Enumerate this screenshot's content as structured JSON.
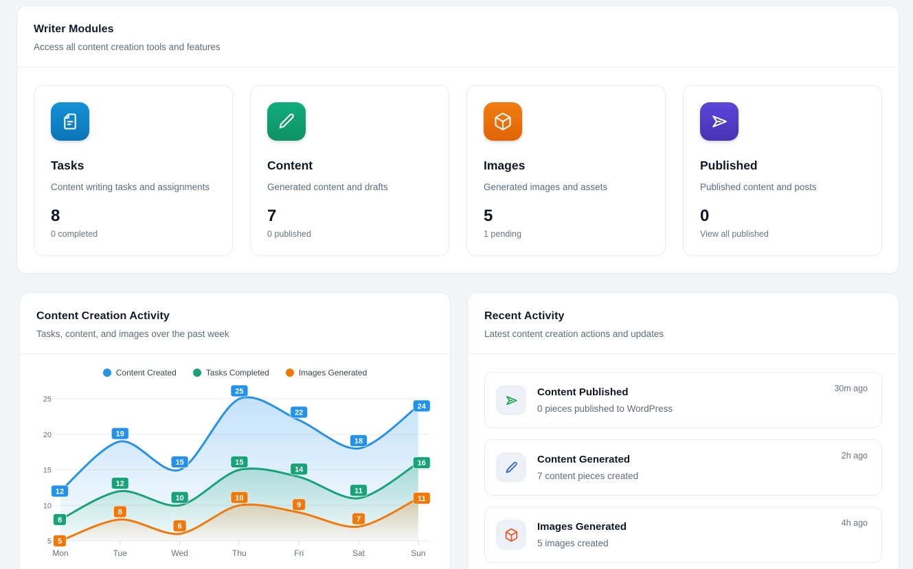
{
  "writer_modules": {
    "title": "Writer Modules",
    "subtitle": "Access all content creation tools and features",
    "cards": [
      {
        "title": "Tasks",
        "description": "Content writing tasks and assignments",
        "count": "8",
        "stat": "0 completed",
        "icon": "document-icon",
        "color_top": "#1492d4",
        "color_bottom": "#0b74b8"
      },
      {
        "title": "Content",
        "description": "Generated content and drafts",
        "count": "7",
        "stat": "0 published",
        "icon": "pencil-icon",
        "color_top": "#13ac7a",
        "color_bottom": "#0c9265"
      },
      {
        "title": "Images",
        "description": "Generated images and assets",
        "count": "5",
        "stat": "1 pending",
        "icon": "cube-icon",
        "color_top": "#f07d12",
        "color_bottom": "#e26304"
      },
      {
        "title": "Published",
        "description": "Published content and posts",
        "count": "0",
        "stat": "View all published",
        "icon": "send-icon",
        "color_top": "#5c45da",
        "color_bottom": "#4832b4"
      }
    ]
  },
  "activity_chart": {
    "title": "Content Creation Activity",
    "subtitle": "Tasks, content, and images over the past week"
  },
  "chart_data": {
    "type": "line",
    "x": [
      "Mon",
      "Tue",
      "Wed",
      "Thu",
      "Fri",
      "Sat",
      "Sun"
    ],
    "series": [
      {
        "name": "Content Created",
        "color": "#2492ea",
        "values": [
          12,
          19,
          15,
          25,
          22,
          18,
          24
        ]
      },
      {
        "name": "Tasks Completed",
        "color": "#17a377",
        "values": [
          8,
          12,
          10,
          15,
          14,
          11,
          16
        ]
      },
      {
        "name": "Images Generated",
        "color": "#f0790b",
        "values": [
          5,
          8,
          6,
          10,
          9,
          7,
          11
        ]
      }
    ],
    "ylim": [
      5,
      25
    ],
    "yticks": [
      5,
      10,
      15,
      20,
      25
    ],
    "grid": true,
    "legend_position": "top",
    "data_labels": true,
    "area_fill": true,
    "tick_color": "#66707b",
    "grid_color": "#ebebeb"
  },
  "recent_activity": {
    "title": "Recent Activity",
    "subtitle": "Latest content creation actions and updates",
    "items": [
      {
        "title": "Content Published",
        "description": "0 pieces published to WordPress",
        "time": "30m ago",
        "icon": "send-icon",
        "icon_color": "#1aa44c"
      },
      {
        "title": "Content Generated",
        "description": "7 content pieces created",
        "time": "2h ago",
        "icon": "pencil-icon",
        "icon_color": "#2b5ce6"
      },
      {
        "title": "Images Generated",
        "description": "5 images created",
        "time": "4h ago",
        "icon": "cube-icon",
        "icon_color": "#e8531f"
      }
    ]
  }
}
